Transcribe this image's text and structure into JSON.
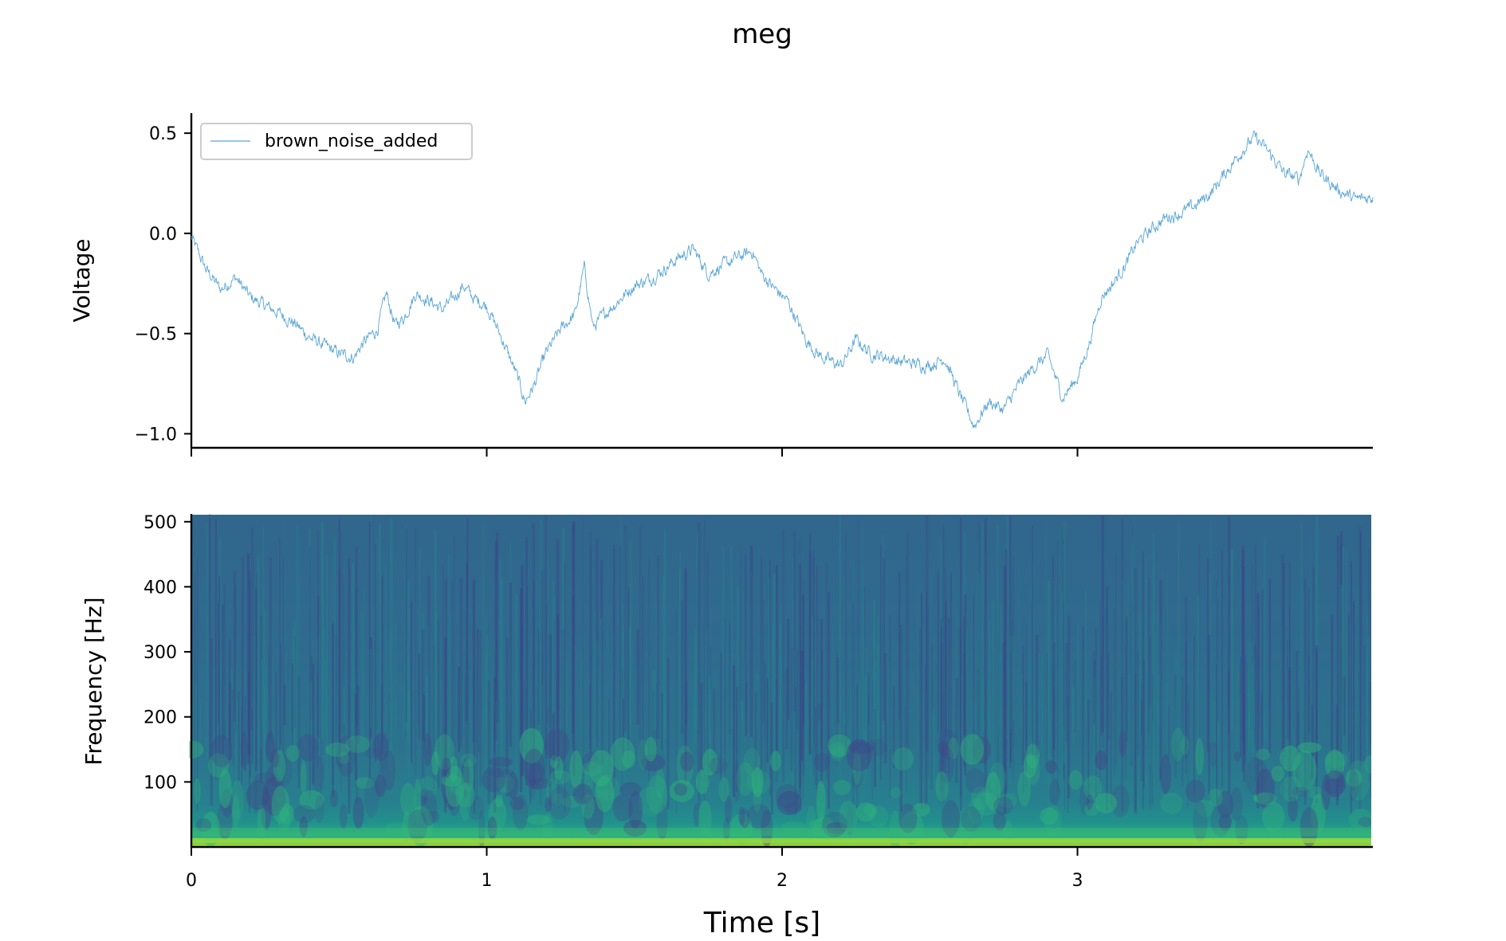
{
  "chart_data": [
    {
      "type": "line",
      "title": "meg",
      "ylabel": "Voltage",
      "xlabel": "",
      "xlim": [
        0,
        4
      ],
      "ylim": [
        -1.07,
        0.6
      ],
      "yticks": [
        0.5,
        0.0,
        -0.5,
        -1.0
      ],
      "ytick_labels": [
        "0.5",
        "0.0",
        "−0.5",
        "−1.0"
      ],
      "xticks": [
        0,
        1,
        2,
        3
      ],
      "legend": {
        "position": "top-left",
        "entries": [
          "brown_noise_added"
        ]
      },
      "grid": false,
      "series": [
        {
          "name": "brown_noise_added",
          "color": "#5aa6d6",
          "x": [
            0.0,
            0.05,
            0.1,
            0.15,
            0.2,
            0.25,
            0.3,
            0.35,
            0.4,
            0.45,
            0.5,
            0.55,
            0.58,
            0.63,
            0.66,
            0.69,
            0.72,
            0.76,
            0.8,
            0.85,
            0.89,
            0.92,
            0.96,
            1.0,
            1.05,
            1.1,
            1.13,
            1.16,
            1.2,
            1.25,
            1.3,
            1.33,
            1.36,
            1.4,
            1.45,
            1.5,
            1.55,
            1.6,
            1.65,
            1.7,
            1.75,
            1.8,
            1.85,
            1.9,
            1.93,
            1.97,
            2.02,
            2.08,
            2.12,
            2.15,
            2.2,
            2.25,
            2.3,
            2.36,
            2.4,
            2.45,
            2.5,
            2.55,
            2.6,
            2.65,
            2.7,
            2.75,
            2.8,
            2.85,
            2.9,
            2.95,
            3.0,
            3.04,
            3.08,
            3.12,
            3.17,
            3.2,
            3.25,
            3.3,
            3.35,
            3.4,
            3.45,
            3.5,
            3.55,
            3.6,
            3.65,
            3.7,
            3.75,
            3.78,
            3.82,
            3.88,
            3.94,
            4.0
          ],
          "y": [
            -0.02,
            -0.18,
            -0.28,
            -0.22,
            -0.32,
            -0.36,
            -0.4,
            -0.45,
            -0.52,
            -0.56,
            -0.6,
            -0.62,
            -0.55,
            -0.48,
            -0.3,
            -0.46,
            -0.42,
            -0.3,
            -0.33,
            -0.38,
            -0.32,
            -0.26,
            -0.33,
            -0.36,
            -0.52,
            -0.7,
            -0.84,
            -0.76,
            -0.6,
            -0.48,
            -0.4,
            -0.17,
            -0.47,
            -0.4,
            -0.33,
            -0.26,
            -0.23,
            -0.18,
            -0.12,
            -0.08,
            -0.2,
            -0.16,
            -0.12,
            -0.09,
            -0.2,
            -0.27,
            -0.34,
            -0.53,
            -0.6,
            -0.63,
            -0.66,
            -0.53,
            -0.6,
            -0.62,
            -0.64,
            -0.65,
            -0.66,
            -0.62,
            -0.8,
            -0.96,
            -0.84,
            -0.88,
            -0.76,
            -0.67,
            -0.61,
            -0.82,
            -0.72,
            -0.55,
            -0.32,
            -0.25,
            -0.14,
            -0.05,
            0.02,
            0.08,
            0.1,
            0.14,
            0.2,
            0.3,
            0.4,
            0.48,
            0.4,
            0.3,
            0.27,
            0.42,
            0.3,
            0.22,
            0.17,
            0.18
          ]
        }
      ]
    },
    {
      "type": "heatmap",
      "ylabel": "Frequency [Hz]",
      "xlabel": "Time [s]",
      "xlim": [
        0,
        4
      ],
      "ylim": [
        0,
        512
      ],
      "yticks": [
        100,
        200,
        300,
        400,
        500
      ],
      "ytick_labels": [
        "100",
        "200",
        "300",
        "400",
        "500"
      ],
      "xticks": [
        0,
        1,
        2,
        3
      ],
      "xtick_labels": [
        "0",
        "1",
        "2",
        "3"
      ],
      "colormap": "viridis",
      "grid": false
    }
  ]
}
